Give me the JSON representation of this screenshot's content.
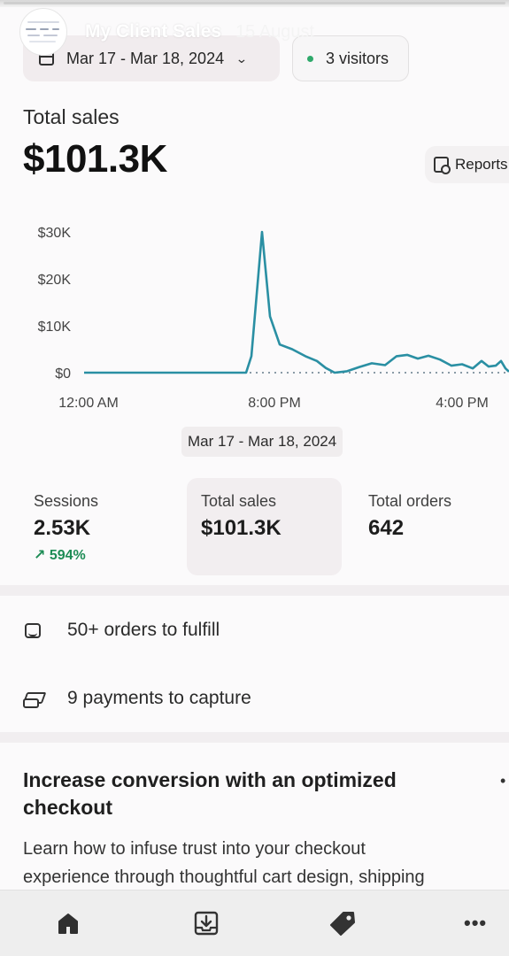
{
  "story": {
    "account_name": "My Client Sales",
    "posted_date": "15 August"
  },
  "filters": {
    "date_range": "Mar 17 - Mar 18, 2024",
    "visitors": "3 visitors",
    "visitors_dot_color": "#2fa96b"
  },
  "summary": {
    "title": "Total sales",
    "value": "$101.3K",
    "report_button": "Reports"
  },
  "chart_data": {
    "type": "line",
    "ylabel": "",
    "xlabel": "",
    "y_ticks": [
      "$30K",
      "$20K",
      "$10K",
      "$0"
    ],
    "x_ticks": [
      "12:00 AM",
      "8:00 PM",
      "4:00 PM"
    ],
    "ylim": [
      0,
      30000
    ],
    "series": [
      {
        "color": "#2a8fa3",
        "x": [
          "Mar 17 12:00 AM",
          "Mar 17 4:00 AM",
          "Mar 17 8:00 AM",
          "Mar 17 12:00 PM",
          "Mar 17 4:00 PM",
          "Mar 17 6:00 PM",
          "Mar 17 6:30 PM",
          "Mar 17 7:00 PM",
          "Mar 17 7:30 PM",
          "Mar 17 8:00 PM",
          "Mar 17 8:30 PM",
          "Mar 17 9:00 PM",
          "Mar 17 10:00 PM",
          "Mar 17 11:00 PM",
          "Mar 18 12:00 AM",
          "Mar 18 1:00 AM",
          "Mar 18 2:00 AM",
          "Mar 18 3:00 AM",
          "Mar 18 4:00 AM",
          "Mar 18 5:00 AM",
          "Mar 18 6:00 AM",
          "Mar 18 7:00 AM",
          "Mar 18 8:00 AM",
          "Mar 18 9:00 AM",
          "Mar 18 10:00 AM",
          "Mar 18 11:00 AM",
          "Mar 18 12:00 PM",
          "Mar 18 1:00 PM",
          "Mar 18 2:00 PM",
          "Mar 18 3:00 PM",
          "Mar 18 4:00 PM",
          "Mar 18 5:00 PM",
          "Mar 18 6:00 PM"
        ],
        "values": [
          0,
          0,
          0,
          0,
          0,
          0,
          3500,
          30000,
          12000,
          6000,
          5000,
          3500,
          2500,
          1000,
          0,
          300,
          1200,
          2000,
          1600,
          3500,
          3800,
          3000,
          3600,
          2800,
          1500,
          1800,
          900,
          2500,
          1300,
          1500,
          2500,
          900,
          200
        ]
      }
    ],
    "zero_line": "dotted",
    "grid": false
  },
  "range_pill": "Mar 17 - Mar 18, 2024",
  "metrics": [
    {
      "label": "Sessions",
      "value": "2.53K",
      "change": "↗ 594%"
    },
    {
      "label": "Total sales",
      "value": "$101.3K",
      "change": ""
    },
    {
      "label": "Total orders",
      "value": "642",
      "change": ""
    }
  ],
  "tasks": [
    {
      "label": "50+ orders to fulfill",
      "icon": "inbox-icon"
    },
    {
      "label": "9 payments to capture",
      "icon": "cash-icon"
    }
  ],
  "card": {
    "title": "Increase conversion with an optimized checkout",
    "body_line1": "Learn how to infuse trust into your checkout",
    "body_line2": "experience through thoughtful cart design, shipping"
  },
  "nav": [
    "home-icon",
    "orders-icon",
    "products-tag-icon",
    "more-icon"
  ]
}
